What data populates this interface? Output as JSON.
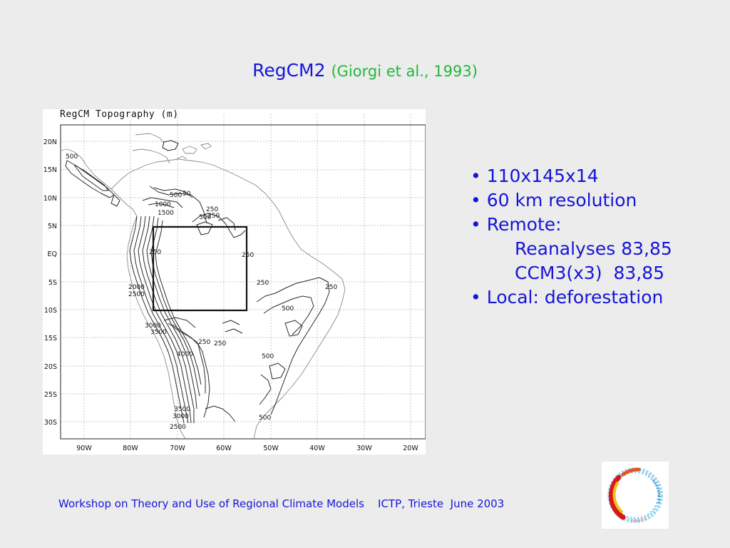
{
  "slide": {
    "title_main": "RegCM2",
    "title_cite": "(Giorgi et al., 1993)",
    "bullets": [
      {
        "marker": "•",
        "text": "110x145x14"
      },
      {
        "marker": "•",
        "text": "60 km resolution"
      },
      {
        "marker": "•",
        "text": "Remote:"
      },
      {
        "marker": "",
        "text": "Reanalyses 83,85"
      },
      {
        "marker": "",
        "text": "CCM3(x3)  83,85"
      },
      {
        "marker": "•",
        "text": "Local: deforestation"
      }
    ],
    "footer_left": "Workshop on Theory and Use of Regional Climate Models",
    "footer_right": "ICTP, Trieste  June 2003"
  },
  "map": {
    "title": "RegCM Topography (m)",
    "lat_labels": [
      "20N",
      "15N",
      "10N",
      "5N",
      "EQ",
      "5S",
      "10S",
      "15S",
      "20S",
      "25S",
      "30S"
    ],
    "lon_labels": [
      "90W",
      "80W",
      "70W",
      "60W",
      "50W",
      "40W",
      "30W",
      "20W"
    ],
    "contour_labels": [
      {
        "id": "c1",
        "text": "500"
      },
      {
        "id": "c2",
        "text": "500"
      },
      {
        "id": "c3",
        "text": "50"
      },
      {
        "id": "c4",
        "text": "1000"
      },
      {
        "id": "c5",
        "text": "1500"
      },
      {
        "id": "c6",
        "text": "250"
      },
      {
        "id": "c7",
        "text": "500"
      },
      {
        "id": "c8",
        "text": "250"
      },
      {
        "id": "c9",
        "text": "250"
      },
      {
        "id": "c10",
        "text": "250"
      },
      {
        "id": "c11",
        "text": "250"
      },
      {
        "id": "c12",
        "text": "2000"
      },
      {
        "id": "c13",
        "text": "2500"
      },
      {
        "id": "c14",
        "text": "500"
      },
      {
        "id": "c15",
        "text": "3000"
      },
      {
        "id": "c16",
        "text": "3500"
      },
      {
        "id": "c17",
        "text": "250"
      },
      {
        "id": "c18",
        "text": "250"
      },
      {
        "id": "c19",
        "text": "4000"
      },
      {
        "id": "c20",
        "text": "500"
      },
      {
        "id": "c21",
        "text": "3500"
      },
      {
        "id": "c22",
        "text": "3000"
      },
      {
        "id": "c23",
        "text": "2500"
      },
      {
        "id": "c24",
        "text": "500"
      },
      {
        "id": "c25",
        "text": "250"
      }
    ]
  },
  "colors": {
    "background": "#ececec",
    "title": "#1515d8",
    "citation": "#22b83a",
    "text": "#1515d8"
  }
}
